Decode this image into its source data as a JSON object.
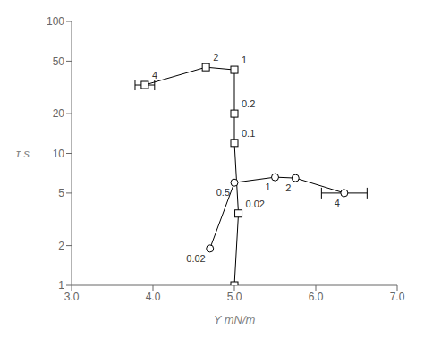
{
  "chart_data": {
    "type": "line",
    "xlabel": "Y mN/m",
    "ylabel": "τ s",
    "log": "y",
    "xlim": [
      3.0,
      7.0
    ],
    "ylim": [
      1,
      100
    ],
    "xticks": [
      {
        "value": 3.0,
        "label": "3.0"
      },
      {
        "value": 4.0,
        "label": "4.0"
      },
      {
        "value": 5.0,
        "label": "5.0"
      },
      {
        "value": 6.0,
        "label": "6.0"
      },
      {
        "value": 7.0,
        "label": "7.0"
      }
    ],
    "yticks": [
      1,
      2,
      5,
      10,
      20,
      50,
      100
    ],
    "series": [
      {
        "marker": "square",
        "color": "#000000",
        "line_style": "solid",
        "x": [
          3.9,
          4.65,
          5.0,
          5.0,
          5.0,
          5.05,
          5.0
        ],
        "values": [
          33,
          45,
          43,
          20,
          12,
          3.5,
          1.0
        ],
        "point_labels": [
          "4",
          "2",
          "1",
          "0.2",
          "0.1",
          "0.02",
          null
        ],
        "xerr": [
          0.12,
          null,
          null,
          null,
          null,
          null,
          null
        ]
      },
      {
        "marker": "circle",
        "color": "#000000",
        "line_style": "solid",
        "x": [
          4.7,
          5.0,
          5.5,
          5.75,
          6.35
        ],
        "values": [
          1.9,
          6.0,
          6.6,
          6.5,
          5.0
        ],
        "point_labels": [
          "0.02",
          "0.5",
          "1",
          "2",
          "4"
        ],
        "xerr": [
          null,
          null,
          null,
          null,
          0.28
        ]
      }
    ]
  }
}
